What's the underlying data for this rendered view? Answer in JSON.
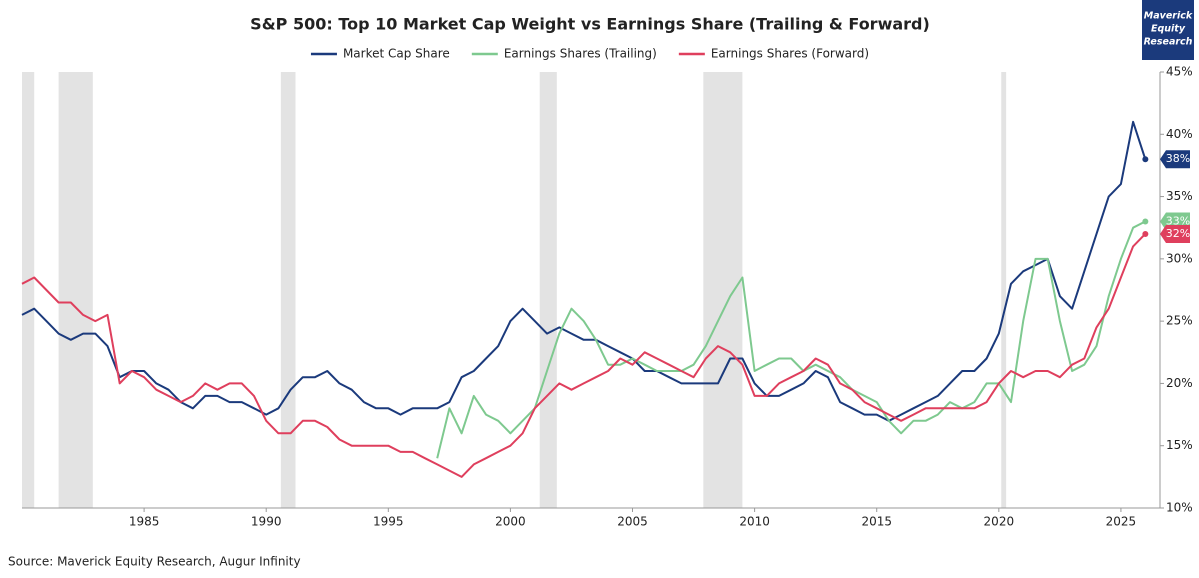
{
  "chart_data": {
    "type": "line",
    "title": "S&P 500: Top 10 Market Cap Weight vs Earnings Share (Trailing & Forward)",
    "source": "Source: Maverick Equity Research, Augur Infinity",
    "logo": [
      "Maverick",
      "Equity",
      "Research"
    ],
    "x": [
      1980,
      1980.5,
      1981,
      1981.5,
      1982,
      1982.5,
      1983,
      1983.5,
      1984,
      1984.5,
      1985,
      1985.5,
      1986,
      1986.5,
      1987,
      1987.5,
      1988,
      1988.5,
      1989,
      1989.5,
      1990,
      1990.5,
      1991,
      1991.5,
      1992,
      1992.5,
      1993,
      1993.5,
      1994,
      1994.5,
      1995,
      1995.5,
      1996,
      1996.5,
      1997,
      1997.5,
      1998,
      1998.5,
      1999,
      1999.5,
      2000,
      2000.5,
      2001,
      2001.5,
      2002,
      2002.5,
      2003,
      2003.5,
      2004,
      2004.5,
      2005,
      2005.5,
      2006,
      2006.5,
      2007,
      2007.5,
      2008,
      2008.5,
      2009,
      2009.5,
      2010,
      2010.5,
      2011,
      2011.5,
      2012,
      2012.5,
      2013,
      2013.5,
      2014,
      2014.5,
      2015,
      2015.5,
      2016,
      2016.5,
      2017,
      2017.5,
      2018,
      2018.5,
      2019,
      2019.5,
      2020,
      2020.5,
      2021,
      2021.5,
      2022,
      2022.5,
      2023,
      2023.5,
      2024,
      2024.5,
      2025,
      2025.5,
      2026
    ],
    "series": [
      {
        "name": "Market Cap Share",
        "color": "#1b3a7c",
        "values": [
          25.5,
          26,
          25,
          24,
          23.5,
          24,
          24,
          23,
          20.5,
          21,
          21,
          20,
          19.5,
          18.5,
          18,
          19,
          19,
          18.5,
          18.5,
          18,
          17.5,
          18,
          19.5,
          20.5,
          20.5,
          21,
          20,
          19.5,
          18.5,
          18,
          18,
          17.5,
          18,
          18,
          18,
          18.5,
          20.5,
          21,
          22,
          23,
          25,
          26,
          25,
          24,
          24.5,
          24,
          23.5,
          23.5,
          23,
          22.5,
          22,
          21,
          21,
          20.5,
          20,
          20,
          20,
          20,
          22,
          22,
          20,
          19,
          19,
          19.5,
          20,
          21,
          20.5,
          18.5,
          18,
          17.5,
          17.5,
          17,
          17.5,
          18,
          18.5,
          19,
          20,
          21,
          21,
          22,
          24,
          28,
          29,
          29.5,
          30,
          27,
          26,
          29,
          32,
          35,
          36,
          41,
          38
        ],
        "value_labels": {
          "92": "38%"
        }
      },
      {
        "name": "Earnings Shares (Trailing)",
        "color": "#7ec98f",
        "values": [
          null,
          null,
          null,
          null,
          null,
          null,
          null,
          null,
          null,
          null,
          null,
          null,
          null,
          null,
          null,
          null,
          null,
          null,
          null,
          null,
          null,
          null,
          null,
          null,
          null,
          null,
          null,
          null,
          null,
          null,
          null,
          null,
          null,
          null,
          14,
          18,
          16,
          19,
          17.5,
          17,
          16,
          17,
          18,
          21,
          24,
          26,
          25,
          23.5,
          21.5,
          21.5,
          22,
          21.5,
          21,
          21,
          21,
          21.5,
          23,
          25,
          27,
          28.5,
          21,
          21.5,
          22,
          22,
          21,
          21.5,
          21,
          20.5,
          19.5,
          19,
          18.5,
          17,
          16,
          17,
          17,
          17.5,
          18.5,
          18,
          18.5,
          20,
          20,
          18.5,
          25,
          30,
          30,
          25,
          21,
          21.5,
          23,
          27,
          30,
          32.5,
          33
        ],
        "value_labels": {
          "92": "33%"
        }
      },
      {
        "name": "Earnings Shares (Forward)",
        "color": "#df3f5d",
        "values": [
          28,
          28.5,
          27.5,
          26.5,
          26.5,
          25.5,
          25,
          25.5,
          20,
          21,
          20.5,
          19.5,
          19,
          18.5,
          19,
          20,
          19.5,
          20,
          20,
          19,
          17,
          16,
          16,
          17,
          17,
          16.5,
          15.5,
          15,
          15,
          15,
          15,
          14.5,
          14.5,
          14,
          13.5,
          13,
          12.5,
          13.5,
          14,
          14.5,
          15,
          16,
          18,
          19,
          20,
          19.5,
          20,
          20.5,
          21,
          22,
          21.5,
          22.5,
          22,
          21.5,
          21,
          20.5,
          22,
          23,
          22.5,
          21.5,
          19,
          19,
          20,
          20.5,
          21,
          22,
          21.5,
          20,
          19.5,
          18.5,
          18,
          17.5,
          17,
          17.5,
          18,
          18,
          18,
          18,
          18,
          18.5,
          20,
          21,
          20.5,
          21,
          21,
          20.5,
          21.5,
          22,
          24.5,
          26,
          28.5,
          31,
          32
        ],
        "value_labels": {
          "92": "32%"
        }
      }
    ],
    "recessions": [
      [
        1980,
        1980.5
      ],
      [
        1981.5,
        1982.9
      ],
      [
        1990.6,
        1991.2
      ],
      [
        2001.2,
        2001.9
      ],
      [
        2007.9,
        2009.5
      ],
      [
        2020.1,
        2020.3
      ]
    ],
    "xlim": [
      1980,
      2026.6
    ],
    "xticks": [
      1985,
      1990,
      1995,
      2000,
      2005,
      2010,
      2015,
      2020,
      2025
    ],
    "ylim": [
      10,
      45
    ],
    "yticks": [
      {
        "value": 10,
        "label": "10%"
      },
      {
        "value": 15,
        "label": "15%"
      },
      {
        "value": 20,
        "label": "20%"
      },
      {
        "value": 25,
        "label": "25%"
      },
      {
        "value": 30,
        "label": "30%"
      },
      {
        "value": 35,
        "label": "35%"
      },
      {
        "value": 40,
        "label": "40%"
      },
      {
        "value": 45,
        "label": "45%"
      }
    ],
    "y_axis_side": "right",
    "grid": false
  }
}
